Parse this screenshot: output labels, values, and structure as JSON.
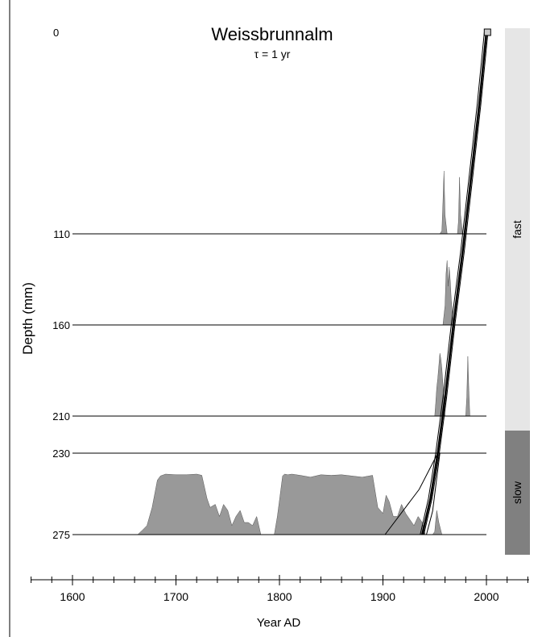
{
  "chart_data": {
    "type": "area",
    "title": "Weissbrunnalm",
    "subtitle": "τ = 1 yr",
    "xlabel": "Year AD",
    "ylabel": "Depth (mm)",
    "xlim": [
      1560,
      2040
    ],
    "x_ticks": [
      1600,
      1700,
      1800,
      1900,
      2000
    ],
    "y_ticks": [
      0,
      110,
      160,
      210,
      230,
      275
    ],
    "grid": false,
    "legend": "none",
    "colors": {
      "fill": "#999999",
      "line": "#000000",
      "fast_band": "#e6e6e6",
      "slow_band": "#808080"
    },
    "regimes": [
      {
        "label": "fast",
        "depth_range": [
          0,
          230
        ]
      },
      {
        "label": "slow",
        "depth_range": [
          230,
          275
        ]
      }
    ],
    "age_depth_model": [
      {
        "year": 2000,
        "depth": 0
      },
      {
        "year": 1993,
        "depth": 40
      },
      {
        "year": 1985,
        "depth": 80
      },
      {
        "year": 1977,
        "depth": 120
      },
      {
        "year": 1968,
        "depth": 160
      },
      {
        "year": 1960,
        "depth": 200
      },
      {
        "year": 1953,
        "depth": 230
      },
      {
        "year": 1946,
        "depth": 255
      },
      {
        "year": 1938,
        "depth": 275
      }
    ],
    "age_depth_branches": [
      [
        {
          "year": 1953,
          "depth": 230
        },
        {
          "year": 1935,
          "depth": 250
        },
        {
          "year": 1902,
          "depth": 275
        }
      ],
      [
        {
          "year": 1955,
          "depth": 230
        },
        {
          "year": 1948,
          "depth": 262
        },
        {
          "year": 1942,
          "depth": 275
        }
      ]
    ],
    "endpoint_marker": {
      "year": 2001,
      "depth": 0
    },
    "density_panels": [
      {
        "depth": 110,
        "x": [
          1955,
          1957,
          1958,
          1959,
          1960,
          1962,
          1972,
          1973,
          1974,
          1975,
          1977
        ],
        "y": [
          0,
          0.05,
          0.5,
          1.0,
          0.3,
          0,
          0,
          0.2,
          0.9,
          0.3,
          0
        ]
      },
      {
        "depth": 160,
        "x": [
          1958,
          1960,
          1961,
          1962,
          1963,
          1964,
          1965,
          1966,
          1967,
          1968
        ],
        "y": [
          0,
          0.3,
          0.8,
          1.0,
          0.6,
          0.9,
          0.7,
          0.4,
          0.2,
          0
        ]
      },
      {
        "depth": 210,
        "x": [
          1950,
          1951,
          1952,
          1953,
          1954,
          1955,
          1956,
          1957,
          1958,
          1960,
          1980,
          1981,
          1982,
          1983,
          1984
        ],
        "y": [
          0,
          0.2,
          0.45,
          0.6,
          0.8,
          1.0,
          0.9,
          0.75,
          0.5,
          0,
          0,
          0.3,
          0.95,
          0.4,
          0
        ]
      },
      {
        "depth": 275,
        "x": [
          1663,
          1668,
          1672,
          1677,
          1682,
          1685,
          1690,
          1700,
          1710,
          1720,
          1725,
          1730,
          1733,
          1738,
          1742,
          1746,
          1750,
          1754,
          1758,
          1762,
          1766,
          1770,
          1774,
          1778,
          1782,
          1795,
          1798,
          1801,
          1803,
          1805,
          1808,
          1812,
          1820,
          1830,
          1840,
          1850,
          1860,
          1870,
          1880,
          1890,
          1895,
          1900,
          1903,
          1906,
          1910,
          1914,
          1918,
          1922,
          1926,
          1930,
          1934,
          1938,
          1941,
          1945,
          1948,
          1950,
          1952,
          1954,
          1957
        ],
        "y": [
          0.0,
          0.08,
          0.15,
          0.45,
          0.9,
          0.97,
          1.0,
          0.99,
          0.99,
          1.0,
          0.98,
          0.6,
          0.45,
          0.5,
          0.3,
          0.5,
          0.4,
          0.15,
          0.3,
          0.4,
          0.2,
          0.2,
          0.15,
          0.3,
          0.0,
          0.0,
          0.3,
          0.7,
          0.97,
          1.0,
          0.99,
          1.0,
          0.98,
          0.95,
          0.99,
          0.98,
          0.99,
          0.97,
          0.95,
          0.98,
          0.45,
          0.35,
          0.65,
          0.55,
          0.3,
          0.3,
          0.5,
          0.35,
          0.25,
          0.15,
          0.3,
          0.2,
          0.0,
          0.0,
          0.0,
          0.05,
          0.4,
          0.2,
          0.0
        ]
      }
    ]
  }
}
